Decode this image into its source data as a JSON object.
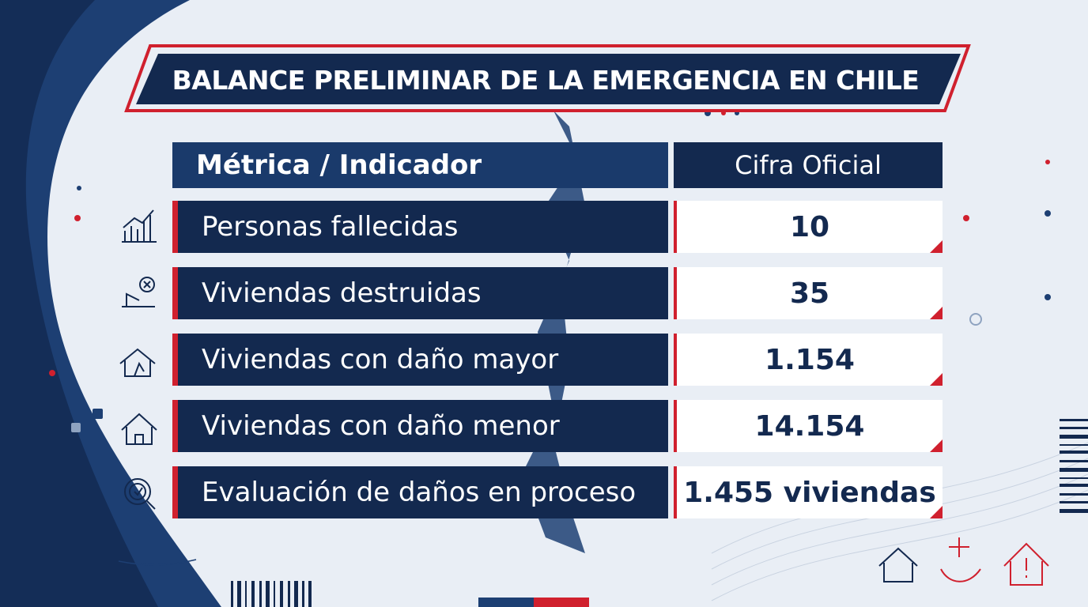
{
  "header": {
    "title": "BALANCE PRELIMINAR DE LA EMERGENCIA EN CHILE"
  },
  "table": {
    "columns": [
      "Métrica / Indicador",
      "Cifra Oficial"
    ],
    "rows": [
      [
        "Personas fallecidas",
        "10"
      ],
      [
        "Viviendas destruidas",
        "35"
      ],
      [
        "Viviendas con daño mayor",
        "1.154"
      ],
      [
        "Viviendas con daño menor",
        "14.154"
      ],
      [
        "Evaluación de daños en proceso",
        "1.455 viviendas"
      ]
    ]
  }
}
